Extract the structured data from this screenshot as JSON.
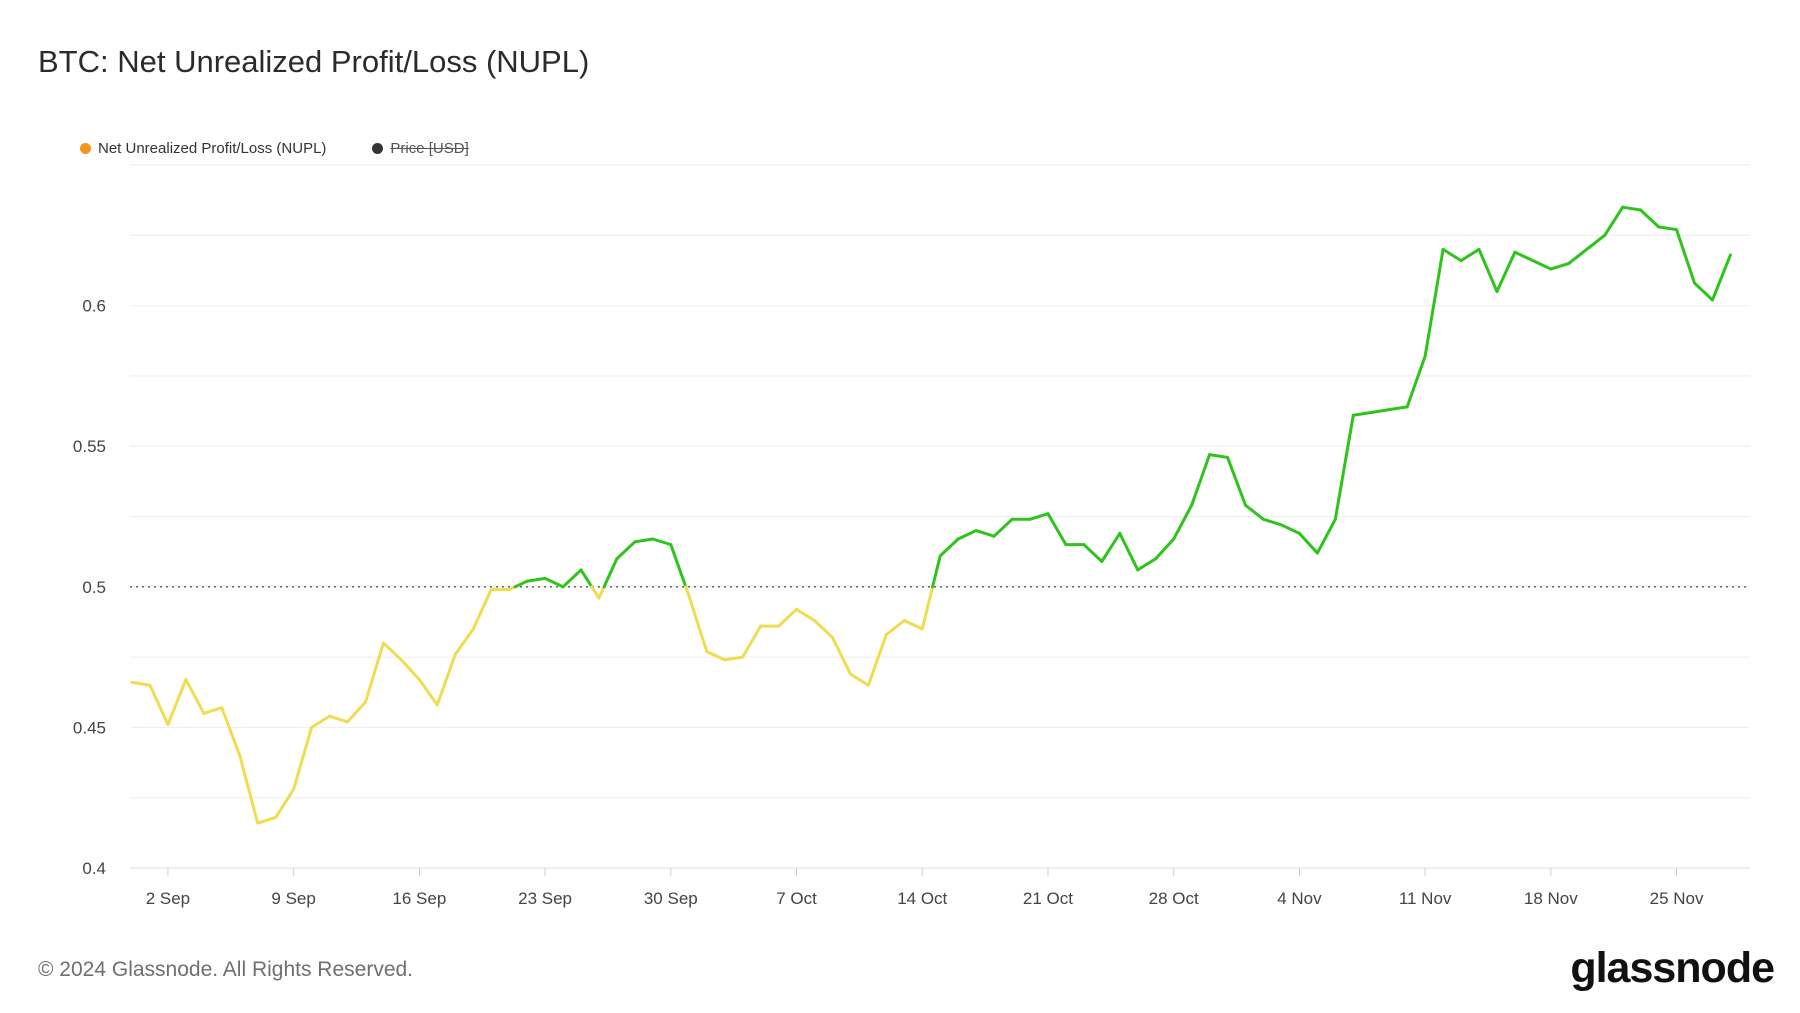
{
  "title": "BTC: Net Unrealized Profit/Loss (NUPL)",
  "legend": [
    {
      "label": "Net Unrealized Profit/Loss (NUPL)",
      "color": "#f7931a",
      "enabled": true
    },
    {
      "label": "Price [USD]",
      "color": "#333333",
      "enabled": false
    }
  ],
  "footer": "© 2024 Glassnode. All Rights Reserved.",
  "logo": "glassnode",
  "chart_data": {
    "type": "line",
    "title": "BTC: Net Unrealized Profit/Loss (NUPL)",
    "xlabel": "",
    "ylabel": "",
    "ylim": [
      0.4,
      0.65
    ],
    "yticks": [
      "0.4",
      "0.45",
      "0.5",
      "0.55",
      "0.6"
    ],
    "xticks": [
      "2 Sep",
      "9 Sep",
      "16 Sep",
      "23 Sep",
      "30 Sep",
      "7 Oct",
      "14 Oct",
      "21 Oct",
      "28 Oct",
      "4 Nov",
      "11 Nov",
      "18 Nov",
      "25 Nov"
    ],
    "x_start": "2024-08-31",
    "reference_line": 0.5,
    "colors": {
      "below": "#f0dc50",
      "above": "#2ec41c"
    },
    "grid": true,
    "series": [
      {
        "name": "Net Unrealized Profit/Loss (NUPL)",
        "values": [
          0.466,
          0.465,
          0.451,
          0.467,
          0.455,
          0.457,
          0.44,
          0.416,
          0.418,
          0.428,
          0.45,
          0.454,
          0.452,
          0.459,
          0.48,
          0.474,
          0.467,
          0.458,
          0.476,
          0.485,
          0.499,
          0.499,
          0.502,
          0.503,
          0.5,
          0.506,
          0.496,
          0.51,
          0.516,
          0.517,
          0.515,
          0.497,
          0.477,
          0.474,
          0.475,
          0.486,
          0.486,
          0.492,
          0.488,
          0.482,
          0.469,
          0.465,
          0.483,
          0.488,
          0.485,
          0.511,
          0.517,
          0.52,
          0.518,
          0.524,
          0.524,
          0.526,
          0.515,
          0.515,
          0.509,
          0.519,
          0.506,
          0.51,
          0.517,
          0.529,
          0.547,
          0.546,
          0.529,
          0.524,
          0.522,
          0.519,
          0.512,
          0.524,
          0.561,
          0.562,
          0.563,
          0.564,
          0.582,
          0.62,
          0.616,
          0.62,
          0.605,
          0.619,
          0.616,
          0.613,
          0.615,
          0.62,
          0.625,
          0.635,
          0.634,
          0.628,
          0.627,
          0.608,
          0.602,
          0.618
        ]
      }
    ]
  }
}
